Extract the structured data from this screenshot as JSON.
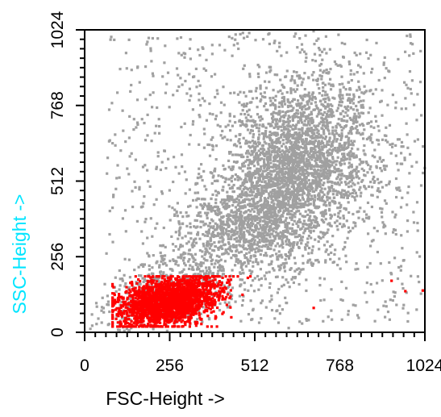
{
  "chart_data": {
    "type": "scatter",
    "title": "",
    "xlabel": "FSC-Height ->",
    "ylabel": "SSC-Height ->",
    "xlim": [
      0,
      1024
    ],
    "ylim": [
      0,
      1024
    ],
    "x_ticks": [
      "0",
      "256",
      "512",
      "768",
      "1024"
    ],
    "y_ticks": [
      "0",
      "256",
      "512",
      "768",
      "1024"
    ],
    "grid": false,
    "legend": "none",
    "colors": {
      "gated": "#ff0000",
      "ungated": "#a0a0a0",
      "ylabel": "#00e5ff",
      "axis": "#000000"
    },
    "series": [
      {
        "color": "#a0a0a0",
        "clusters": [
          {
            "x_center": 640,
            "y_center": 560,
            "x_spread": 110,
            "y_spread": 150,
            "points": 2800
          },
          {
            "x_center": 470,
            "y_center": 360,
            "x_spread": 110,
            "y_spread": 90,
            "points": 900
          },
          {
            "x_center": 230,
            "y_center": 120,
            "x_spread": 90,
            "y_spread": 60,
            "points": 500
          }
        ],
        "background_points": 900
      },
      {
        "color": "#ff0000",
        "clusters": [
          {
            "x_center": 250,
            "y_center": 100,
            "x_spread": 75,
            "y_spread": 40,
            "points": 2200
          }
        ],
        "x_range": [
          80,
          660
        ],
        "y_range": [
          15,
          185
        ],
        "outliers": [
          [
            745,
            78
          ],
          [
            1000,
            170
          ],
          [
            1045,
            135
          ],
          [
            1102,
            137
          ]
        ]
      }
    ]
  }
}
